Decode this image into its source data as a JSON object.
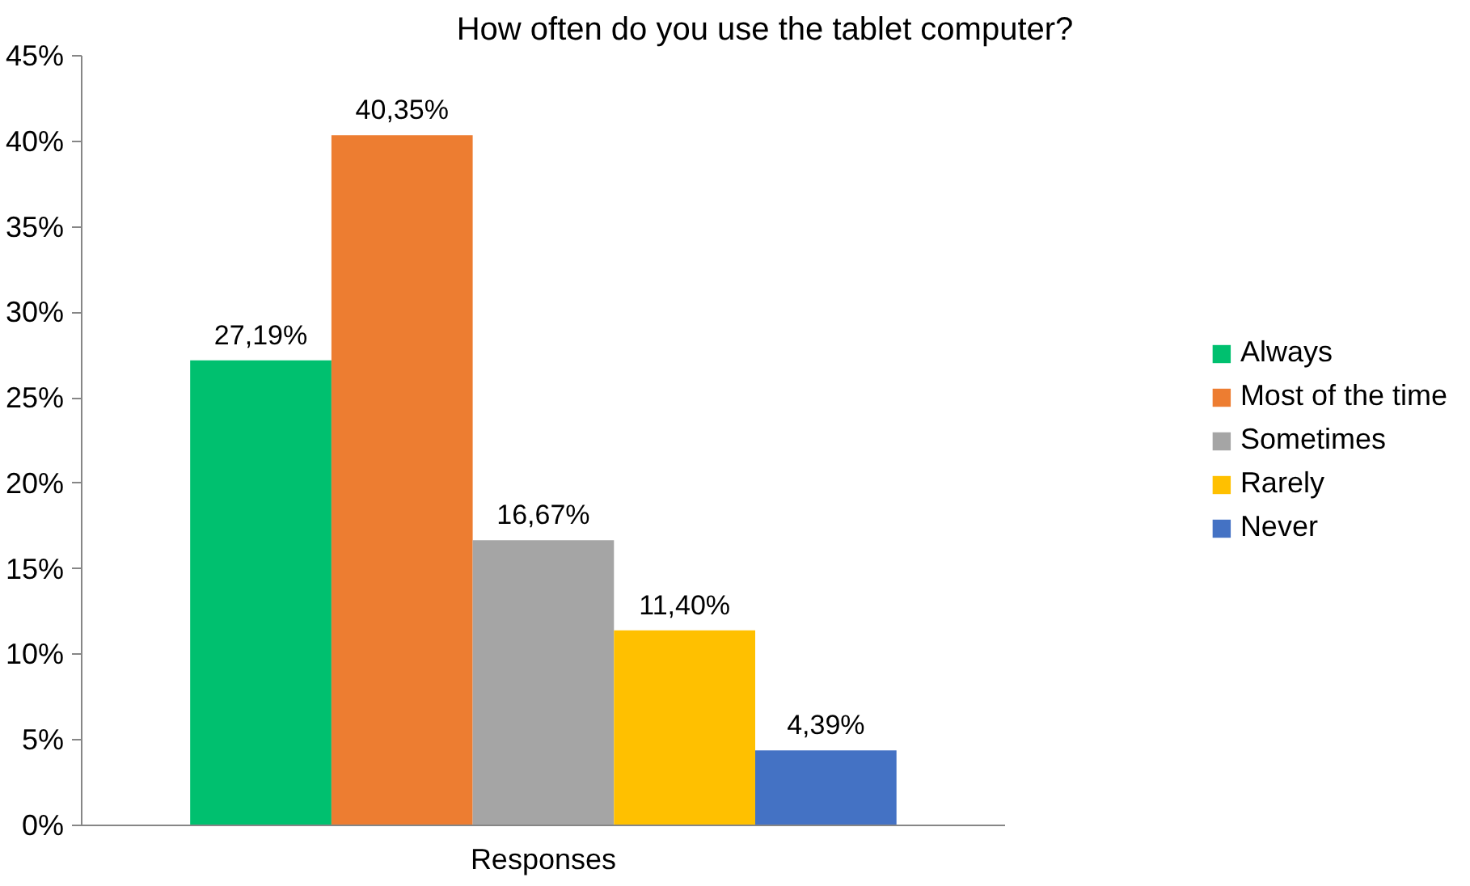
{
  "chart_data": {
    "type": "bar",
    "title": "How often do you use the tablet computer?",
    "categories": [
      "Responses"
    ],
    "series": [
      {
        "name": "Always",
        "color": "#00c06f",
        "values": [
          27.19
        ],
        "value_labels": [
          "27,19%"
        ]
      },
      {
        "name": "Most of the time",
        "color": "#ed7d31",
        "values": [
          40.35
        ],
        "value_labels": [
          "40,35%"
        ]
      },
      {
        "name": "Sometimes",
        "color": "#a5a5a5",
        "values": [
          16.67
        ],
        "value_labels": [
          "16,67%"
        ]
      },
      {
        "name": "Rarely",
        "color": "#ffc000",
        "values": [
          11.4
        ],
        "value_labels": [
          "11,40%"
        ]
      },
      {
        "name": "Never",
        "color": "#4472c4",
        "values": [
          4.39
        ],
        "value_labels": [
          "4,39%"
        ]
      }
    ],
    "ylim": [
      0,
      45
    ],
    "yticks": [
      {
        "value": 0,
        "label": "0%"
      },
      {
        "value": 5,
        "label": "5%"
      },
      {
        "value": 10,
        "label": "10%"
      },
      {
        "value": 15,
        "label": "15%"
      },
      {
        "value": 20,
        "label": "20%"
      },
      {
        "value": 25,
        "label": "25%"
      },
      {
        "value": 30,
        "label": "30%"
      },
      {
        "value": 35,
        "label": "35%"
      },
      {
        "value": 40,
        "label": "40%"
      },
      {
        "value": 45,
        "label": "45%"
      }
    ],
    "grid": false,
    "legend": "right"
  }
}
